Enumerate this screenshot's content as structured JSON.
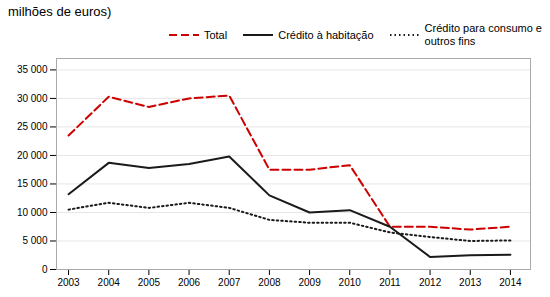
{
  "chart_data": {
    "type": "line",
    "title": "milhões de euros)",
    "x": [
      2003,
      2004,
      2005,
      2006,
      2007,
      2008,
      2009,
      2010,
      2011,
      2012,
      2013,
      2014
    ],
    "series": [
      {
        "name": "Total",
        "color": "#cc0000",
        "line_style": "dashed",
        "values": [
          23500,
          30300,
          28500,
          30000,
          30500,
          17500,
          17500,
          18300,
          7500,
          7500,
          7000,
          7500
        ]
      },
      {
        "name": "Crédito à habitação",
        "color": "#1a1a1a",
        "line_style": "solid",
        "values": [
          13200,
          18700,
          17800,
          18500,
          19800,
          13000,
          10000,
          10400,
          7500,
          2200,
          2500,
          2600
        ]
      },
      {
        "name": "Crédito para consumo e\noutros fins",
        "color": "#1a1a1a",
        "line_style": "dotted",
        "values": [
          10500,
          11700,
          10800,
          11700,
          10800,
          8700,
          8200,
          8200,
          6500,
          5700,
          5000,
          5100
        ]
      }
    ],
    "xlim": [
      2002.7,
      2014.5
    ],
    "xticks": [
      2003,
      2004,
      2005,
      2006,
      2007,
      2008,
      2009,
      2010,
      2011,
      2012,
      2013,
      2014
    ],
    "ylim": [
      0,
      37000
    ],
    "yticks": [
      0,
      {
        "value": 5000,
        "label": "5 000"
      },
      {
        "value": 10000,
        "label": "10 000"
      },
      {
        "value": 15000,
        "label": "15 000"
      },
      {
        "value": 20000,
        "label": "20 000"
      },
      {
        "value": 25000,
        "label": "25 000"
      },
      {
        "value": 30000,
        "label": "30 000"
      },
      {
        "value": 35000,
        "label": "35 000"
      }
    ],
    "grid": true,
    "legend": "upper right"
  }
}
